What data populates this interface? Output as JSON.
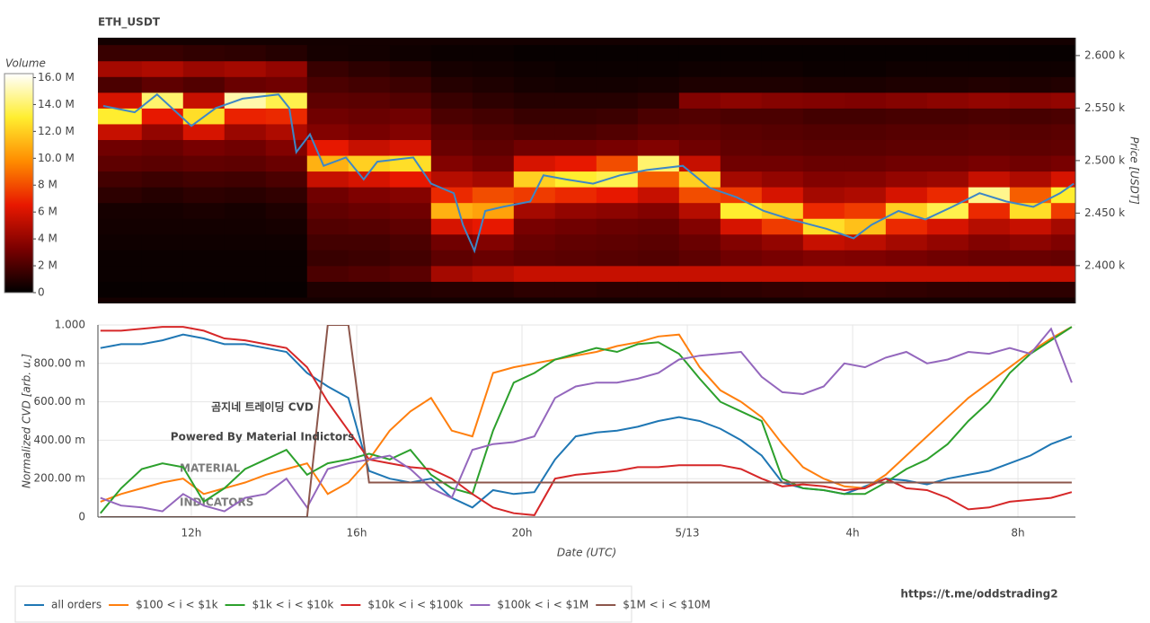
{
  "chart_data": [
    {
      "type": "heatmap",
      "title": "ETH_USDT",
      "ylabel": "Price [USDT]",
      "xlim": [
        9.74,
        33.39
      ],
      "ylim": [
        2364,
        2617
      ],
      "yticks": [
        {
          "value": 2400,
          "label": "2.400 k"
        },
        {
          "value": 2450,
          "label": "2.450 k"
        },
        {
          "value": 2500,
          "label": "2.500 k"
        },
        {
          "value": 2550,
          "label": "2.550 k"
        },
        {
          "value": 2600,
          "label": "2.600 k"
        }
      ],
      "x_bins": [
        9.74,
        10.8,
        11.8,
        12.8,
        13.8,
        14.8,
        15.8,
        16.8,
        17.8,
        18.8,
        19.8,
        20.8,
        21.8,
        22.8,
        23.8,
        24.8,
        25.8,
        26.8,
        27.8,
        28.8,
        29.8,
        30.8,
        31.8,
        32.8,
        33.39
      ],
      "y_bins": [
        2370,
        2385,
        2400,
        2415,
        2430,
        2445,
        2460,
        2475,
        2490,
        2505,
        2520,
        2535,
        2550,
        2565,
        2580,
        2595,
        2610
      ],
      "z": [
        [
          0.2,
          0.3,
          0.3,
          0.4,
          0.5,
          0.6,
          1.2,
          1.8,
          2.5,
          3.0,
          5.5,
          13.0,
          6.0,
          2.0,
          4.5,
          1.5
        ],
        [
          0.2,
          0.3,
          0.3,
          0.4,
          0.5,
          0.6,
          1.0,
          1.6,
          2.4,
          2.8,
          4.0,
          6.5,
          14.0,
          2.5,
          4.8,
          1.5
        ],
        [
          0.2,
          0.3,
          0.3,
          0.4,
          0.5,
          0.7,
          1.2,
          1.8,
          2.6,
          3.2,
          6.0,
          12.5,
          5.5,
          2.2,
          4.2,
          1.3
        ],
        [
          0.2,
          0.3,
          0.3,
          0.4,
          0.5,
          0.6,
          1.1,
          1.7,
          2.5,
          3.0,
          4.2,
          6.8,
          15.0,
          2.8,
          4.5,
          1.2
        ],
        [
          0.2,
          0.3,
          0.3,
          0.4,
          0.6,
          0.8,
          1.3,
          2.0,
          2.8,
          3.5,
          4.8,
          7.0,
          13.5,
          3.0,
          4.0,
          1.0
        ],
        [
          0.8,
          2.0,
          1.5,
          1.8,
          2.2,
          2.6,
          3.0,
          5.5,
          11.0,
          6.5,
          3.5,
          3.0,
          2.5,
          2.0,
          1.5,
          0.6
        ],
        [
          0.8,
          2.2,
          1.6,
          1.8,
          2.3,
          2.8,
          3.4,
          6.0,
          12.0,
          5.5,
          3.2,
          2.8,
          2.4,
          1.8,
          1.2,
          0.5
        ],
        [
          0.9,
          2.4,
          1.8,
          2.0,
          2.5,
          3.0,
          3.6,
          6.5,
          12.5,
          6.0,
          3.5,
          3.0,
          2.2,
          1.6,
          1.0,
          0.4
        ],
        [
          1.0,
          4.5,
          2.5,
          3.0,
          6.0,
          11.0,
          7.0,
          5.0,
          3.5,
          2.8,
          2.5,
          2.0,
          1.5,
          1.0,
          0.6,
          0.3
        ],
        [
          1.0,
          5.0,
          2.8,
          3.5,
          6.5,
          10.5,
          8.0,
          4.5,
          3.0,
          2.5,
          2.2,
          1.8,
          1.2,
          0.8,
          0.5,
          0.3
        ],
        [
          1.2,
          5.5,
          2.5,
          2.8,
          3.2,
          4.5,
          7.5,
          12.0,
          6.0,
          3.0,
          2.0,
          1.5,
          1.0,
          0.6,
          0.4,
          0.2
        ],
        [
          1.2,
          5.5,
          2.4,
          2.6,
          3.0,
          4.0,
          7.0,
          13.0,
          6.5,
          3.0,
          2.0,
          1.5,
          1.0,
          0.5,
          0.3,
          0.2
        ],
        [
          1.1,
          5.5,
          2.3,
          2.5,
          2.8,
          3.8,
          6.5,
          13.5,
          8.0,
          3.2,
          2.2,
          1.6,
          1.0,
          0.5,
          0.3,
          0.2
        ],
        [
          1.1,
          5.5,
          2.2,
          2.4,
          2.7,
          3.5,
          5.5,
          8.5,
          14.0,
          3.5,
          2.5,
          2.0,
          1.2,
          0.6,
          0.3,
          0.2
        ],
        [
          1.1,
          5.5,
          2.5,
          2.8,
          3.5,
          5.0,
          8.0,
          12.0,
          5.5,
          3.0,
          2.6,
          2.2,
          3.5,
          0.8,
          0.4,
          0.2
        ],
        [
          1.2,
          5.5,
          3.0,
          3.5,
          6.0,
          13.0,
          7.5,
          4.5,
          3.0,
          2.6,
          2.4,
          2.0,
          3.8,
          0.8,
          0.4,
          0.2
        ],
        [
          1.3,
          5.5,
          3.2,
          4.0,
          7.5,
          12.0,
          6.0,
          4.0,
          3.0,
          2.5,
          2.3,
          2.0,
          3.6,
          0.8,
          0.4,
          0.2
        ],
        [
          1.4,
          5.5,
          3.5,
          5.5,
          12.5,
          7.0,
          4.5,
          3.5,
          2.8,
          2.4,
          2.2,
          1.8,
          3.5,
          0.7,
          0.3,
          0.2
        ],
        [
          1.4,
          5.5,
          3.4,
          5.2,
          11.5,
          7.5,
          4.8,
          3.6,
          2.8,
          2.4,
          2.2,
          1.8,
          3.4,
          0.7,
          0.3,
          0.2
        ],
        [
          1.3,
          5.5,
          3.2,
          4.5,
          7.0,
          12.0,
          6.0,
          4.0,
          3.0,
          2.5,
          2.3,
          1.9,
          3.6,
          0.8,
          0.4,
          0.2
        ],
        [
          1.2,
          5.5,
          3.0,
          4.0,
          6.0,
          13.5,
          7.0,
          4.2,
          3.0,
          2.5,
          2.3,
          1.9,
          3.8,
          0.8,
          0.4,
          0.2
        ],
        [
          1.2,
          5.5,
          2.8,
          3.5,
          5.0,
          7.0,
          14.5,
          5.5,
          3.2,
          2.6,
          2.4,
          2.0,
          4.0,
          0.9,
          0.4,
          0.2
        ],
        [
          1.2,
          5.5,
          2.8,
          3.8,
          5.5,
          12.5,
          8.5,
          4.8,
          3.0,
          2.5,
          2.3,
          1.9,
          3.8,
          0.8,
          0.4,
          0.2
        ],
        [
          1.2,
          5.5,
          2.7,
          3.4,
          4.5,
          7.5,
          13.0,
          6.0,
          3.2,
          2.6,
          2.4,
          2.0,
          4.0,
          0.9,
          0.4,
          0.2
        ]
      ],
      "colorbar": {
        "title": "Volume",
        "lim": [
          0,
          16.3
        ],
        "ticks": [
          0,
          {
            "value": 2,
            "label": "2 M"
          },
          {
            "value": 4,
            "label": "4 M"
          },
          {
            "value": 6,
            "label": "6 M"
          },
          {
            "value": 8,
            "label": "8 M"
          },
          {
            "value": 10,
            "label": "10.0 M"
          },
          {
            "value": 12,
            "label": "12.0 M"
          },
          {
            "value": 14,
            "label": "14.0 M"
          },
          {
            "value": 16,
            "label": "16.0 M"
          }
        ],
        "colorscale": [
          "#000000",
          "#7a0000",
          "#e81800",
          "#ff8c00",
          "#ffee30",
          "#ffffff"
        ]
      },
      "line": {
        "color": "#3d87c6",
        "x": [
          9.87,
          10.63,
          11.17,
          12,
          12.59,
          13.24,
          14.11,
          14.37,
          14.54,
          14.87,
          15.2,
          15.74,
          16.17,
          16.5,
          17.37,
          17.8,
          18.35,
          18.57,
          18.85,
          19.11,
          19.54,
          20.2,
          20.52,
          21.07,
          21.72,
          22.37,
          23.02,
          23.89,
          24.54,
          25.2,
          25.85,
          26.5,
          27.37,
          28.02,
          28.46,
          29.11,
          29.76,
          30.41,
          31.07,
          31.72,
          32.37,
          33.02,
          33.35
        ],
        "values": [
          2552,
          2546,
          2563,
          2533,
          2550,
          2559,
          2563,
          2550,
          2508,
          2525,
          2495,
          2503,
          2482,
          2499,
          2503,
          2478,
          2469,
          2439,
          2414,
          2452,
          2456,
          2461,
          2486,
          2482,
          2478,
          2486,
          2491,
          2495,
          2474,
          2465,
          2452,
          2444,
          2435,
          2426,
          2439,
          2452,
          2444,
          2456,
          2469,
          2461,
          2456,
          2469,
          2478
        ]
      }
    },
    {
      "type": "line",
      "xlabel": "Date (UTC)",
      "ylabel": "Normalized CVD [arb. u.]",
      "xlim": [
        9.74,
        33.39
      ],
      "ylim": [
        0,
        1
      ],
      "grid": true,
      "legend": "bottom-left",
      "xticks": [
        {
          "value": 12,
          "label": "12h"
        },
        {
          "value": 16,
          "label": "16h"
        },
        {
          "value": 20,
          "label": "20h"
        },
        {
          "value": 24,
          "label": "5/13"
        },
        {
          "value": 28,
          "label": "4h"
        },
        {
          "value": 32,
          "label": "8h"
        }
      ],
      "yticks": [
        0,
        {
          "value": 0.2,
          "label": "200.00 m"
        },
        {
          "value": 0.4,
          "label": "400.00 m"
        },
        {
          "value": 0.6,
          "label": "600.00 m"
        },
        {
          "value": 0.8,
          "label": "800.00 m"
        },
        {
          "value": 1,
          "label": "1.000"
        }
      ],
      "x": [
        9.8,
        10.3,
        10.8,
        11.3,
        11.8,
        12.3,
        12.8,
        13.3,
        13.8,
        14.3,
        14.8,
        15.3,
        15.8,
        16.3,
        16.8,
        17.3,
        17.8,
        18.3,
        18.8,
        19.3,
        19.8,
        20.3,
        20.8,
        21.3,
        21.8,
        22.3,
        22.8,
        23.3,
        23.8,
        24.3,
        24.8,
        25.3,
        25.8,
        26.3,
        26.8,
        27.3,
        27.8,
        28.3,
        28.8,
        29.3,
        29.8,
        30.3,
        30.8,
        31.3,
        31.8,
        32.3,
        32.8,
        33.3
      ],
      "series": [
        {
          "name": "all orders",
          "color": "#1f77b4",
          "values": [
            0.88,
            0.9,
            0.9,
            0.92,
            0.95,
            0.93,
            0.9,
            0.9,
            0.88,
            0.86,
            0.75,
            0.68,
            0.62,
            0.24,
            0.2,
            0.18,
            0.2,
            0.1,
            0.05,
            0.14,
            0.12,
            0.13,
            0.3,
            0.42,
            0.44,
            0.45,
            0.47,
            0.5,
            0.52,
            0.5,
            0.46,
            0.4,
            0.32,
            0.18,
            0.15,
            0.14,
            0.12,
            0.16,
            0.2,
            0.19,
            0.17,
            0.2,
            0.22,
            0.24,
            0.28,
            0.32,
            0.38,
            0.42
          ]
        },
        {
          "name": "$100 < i < $1k",
          "color": "#ff7f0e",
          "values": [
            0.08,
            0.12,
            0.15,
            0.18,
            0.2,
            0.12,
            0.15,
            0.18,
            0.22,
            0.25,
            0.28,
            0.12,
            0.18,
            0.3,
            0.45,
            0.55,
            0.62,
            0.45,
            0.42,
            0.75,
            0.78,
            0.8,
            0.82,
            0.84,
            0.86,
            0.89,
            0.91,
            0.94,
            0.95,
            0.78,
            0.66,
            0.6,
            0.52,
            0.38,
            0.26,
            0.2,
            0.16,
            0.15,
            0.22,
            0.32,
            0.42,
            0.52,
            0.62,
            0.7,
            0.78,
            0.86,
            0.93,
            0.99
          ]
        },
        {
          "name": "$1k < i < $10k",
          "color": "#2ca02c",
          "values": [
            0.02,
            0.15,
            0.25,
            0.28,
            0.26,
            0.08,
            0.15,
            0.25,
            0.3,
            0.35,
            0.22,
            0.28,
            0.3,
            0.33,
            0.3,
            0.35,
            0.22,
            0.15,
            0.12,
            0.45,
            0.7,
            0.75,
            0.82,
            0.85,
            0.88,
            0.86,
            0.9,
            0.91,
            0.85,
            0.72,
            0.6,
            0.55,
            0.5,
            0.2,
            0.15,
            0.14,
            0.12,
            0.12,
            0.18,
            0.25,
            0.3,
            0.38,
            0.5,
            0.6,
            0.75,
            0.85,
            0.92,
            0.99
          ]
        },
        {
          "name": "$10k < i < $100k",
          "color": "#d62728",
          "values": [
            0.97,
            0.97,
            0.98,
            0.99,
            0.99,
            0.97,
            0.93,
            0.92,
            0.9,
            0.88,
            0.78,
            0.6,
            0.45,
            0.3,
            0.28,
            0.26,
            0.25,
            0.2,
            0.12,
            0.05,
            0.02,
            0.01,
            0.2,
            0.22,
            0.23,
            0.24,
            0.26,
            0.26,
            0.27,
            0.27,
            0.27,
            0.25,
            0.2,
            0.16,
            0.17,
            0.16,
            0.14,
            0.15,
            0.2,
            0.15,
            0.14,
            0.1,
            0.04,
            0.05,
            0.08,
            0.09,
            0.1,
            0.13
          ]
        },
        {
          "name": "$100k < i < $1M",
          "color": "#9467bd",
          "values": [
            0.1,
            0.06,
            0.05,
            0.03,
            0.12,
            0.06,
            0.03,
            0.1,
            0.12,
            0.2,
            0.05,
            0.25,
            0.28,
            0.3,
            0.32,
            0.25,
            0.15,
            0.1,
            0.35,
            0.38,
            0.39,
            0.42,
            0.62,
            0.68,
            0.7,
            0.7,
            0.72,
            0.75,
            0.82,
            0.84,
            0.85,
            0.86,
            0.73,
            0.65,
            0.64,
            0.68,
            0.8,
            0.78,
            0.83,
            0.86,
            0.8,
            0.82,
            0.86,
            0.85,
            0.88,
            0.85,
            0.98,
            0.7
          ]
        },
        {
          "name": "$1M < i < $10M",
          "color": "#8c564b",
          "values": [
            0,
            0,
            0,
            0,
            0,
            0,
            0,
            0,
            0,
            0,
            0,
            1,
            1,
            0.18,
            0.18,
            0.18,
            0.18,
            0.18,
            0.18,
            0.18,
            0.18,
            0.18,
            0.18,
            0.18,
            0.18,
            0.18,
            0.18,
            0.18,
            0.18,
            0.18,
            0.18,
            0.18,
            0.18,
            0.18,
            0.18,
            0.18,
            0.18,
            0.18,
            0.18,
            0.18,
            0.18,
            0.18,
            0.18,
            0.18,
            0.18,
            0.18,
            0.18,
            0.18
          ]
        }
      ],
      "annotations": {
        "watermark": [
          "MATERIAL",
          "INDICATORS"
        ],
        "overlay": [
          "곰지네 트레이딩 CVD",
          "Powered By Material Indictors"
        ]
      }
    }
  ],
  "footer_link": "https://t.me/oddstrading2"
}
